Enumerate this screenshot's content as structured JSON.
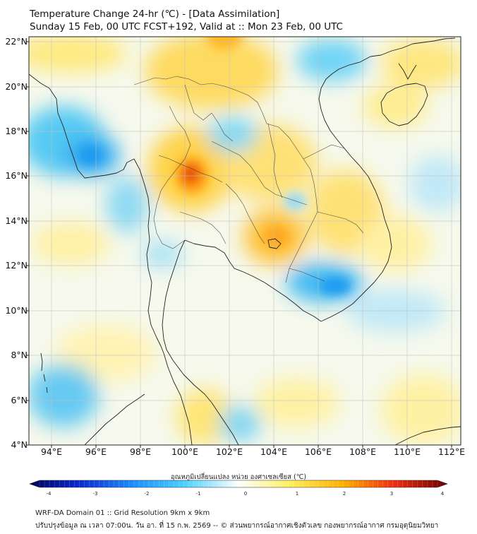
{
  "title": {
    "line1": "Temperature Change 24-hr (℃) - [Data Assimilation]",
    "line2": "Sunday 15 Feb, 00 UTC FCST+192, Valid at :: Mon 23 Feb, 00 UTC"
  },
  "axes": {
    "lat_labels": [
      "22°N",
      "20°N",
      "18°N",
      "16°N",
      "14°N",
      "12°N",
      "10°N",
      "8°N",
      "6°N",
      "4°N"
    ],
    "lon_labels": [
      "94°E",
      "96°E",
      "98°E",
      "100°E",
      "102°E",
      "104°E",
      "106°E",
      "108°E",
      "110°E",
      "112°E"
    ],
    "lat_range": [
      4,
      22.2
    ],
    "lon_range": [
      93,
      112.4
    ]
  },
  "colorbar": {
    "label": "อุณหภูมิเปลี่ยนแปลง หน่วย องศาเซลเซียส (℃)",
    "ticks": [
      "-4",
      "-3",
      "-2",
      "-1",
      "0",
      "1",
      "2",
      "3",
      "4"
    ],
    "min": -4,
    "max": 4
  },
  "footer": {
    "line1": "WRF-DA Domain 01 :: Grid Resolution 9km x 9km",
    "line2": "ปรับปรุงข้อมูล ณ เวลา 07:00น. วัน อา. ที่ 15 ก.พ. 2569 -- © ส่วนพยากรณ์อากาศเชิงตัวเลข กองพยากรณ์อากาศ กรมอุตุนิยมวิทยา"
  },
  "colors": {
    "neg_strong": "#0a0a8c",
    "neg_mid": "#1e90ff",
    "neg_light": "#4ad0ff",
    "neutral": "#ffffff",
    "pos_light": "#fff060",
    "pos_mid": "#ffb000",
    "pos_strong": "#d21010",
    "coast": "#222222",
    "grid": "#c0c0c0"
  }
}
